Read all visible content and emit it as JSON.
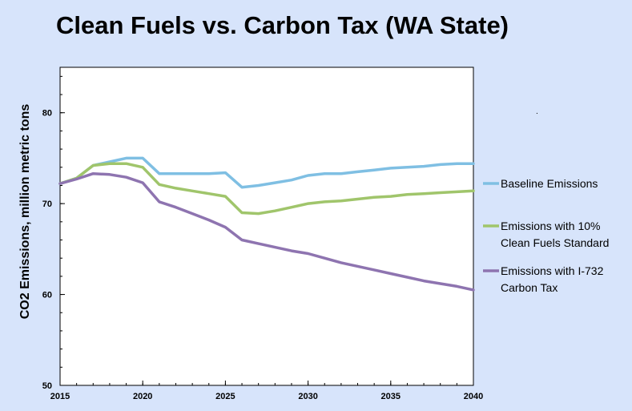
{
  "chart_data": {
    "type": "line",
    "title": "Clean Fuels vs. Carbon Tax (WA State)",
    "xlabel": "",
    "ylabel": "CO2 Emissions, million metric tons",
    "xlim": [
      2015,
      2040
    ],
    "ylim": [
      50,
      85
    ],
    "xticks": [
      2015,
      2020,
      2025,
      2030,
      2035,
      2040
    ],
    "yticks": [
      50,
      60,
      70,
      80
    ],
    "grid": false,
    "legend_placement": "right",
    "x": [
      2015,
      2016,
      2017,
      2018,
      2019,
      2020,
      2021,
      2022,
      2023,
      2024,
      2025,
      2026,
      2027,
      2028,
      2029,
      2030,
      2031,
      2032,
      2033,
      2034,
      2035,
      2036,
      2037,
      2038,
      2039,
      2040
    ],
    "series": [
      {
        "name": "Baseline Emissions",
        "color": "#7fbfe3",
        "values": [
          72.2,
          72.8,
          74.2,
          74.6,
          75.0,
          75.0,
          73.3,
          73.3,
          73.3,
          73.3,
          73.4,
          71.8,
          72.0,
          72.3,
          72.6,
          73.1,
          73.3,
          73.3,
          73.5,
          73.7,
          73.9,
          74.0,
          74.1,
          74.3,
          74.4,
          74.4
        ]
      },
      {
        "name": "Emissions with 10% Clean Fuels Standard",
        "color": "#a0c56b",
        "values": [
          72.2,
          72.8,
          74.2,
          74.4,
          74.4,
          74.0,
          72.1,
          71.7,
          71.4,
          71.1,
          70.8,
          69.0,
          68.9,
          69.2,
          69.6,
          70.0,
          70.2,
          70.3,
          70.5,
          70.7,
          70.8,
          71.0,
          71.1,
          71.2,
          71.3,
          71.4
        ]
      },
      {
        "name": "Emissions with I-732 Carbon Tax",
        "color": "#8e74b0",
        "values": [
          72.2,
          72.7,
          73.3,
          73.2,
          72.9,
          72.3,
          70.2,
          69.6,
          68.9,
          68.2,
          67.4,
          66.0,
          65.6,
          65.2,
          64.8,
          64.5,
          64.0,
          63.5,
          63.1,
          62.7,
          62.3,
          61.9,
          61.5,
          61.2,
          60.9,
          60.5
        ]
      }
    ],
    "legend": [
      {
        "lines": [
          "Baseline Emissions"
        ]
      },
      {
        "lines": [
          "Emissions with 10%",
          "Clean Fuels Standard"
        ]
      },
      {
        "lines": [
          "Emissions with I-732",
          "Carbon Tax"
        ]
      }
    ]
  }
}
